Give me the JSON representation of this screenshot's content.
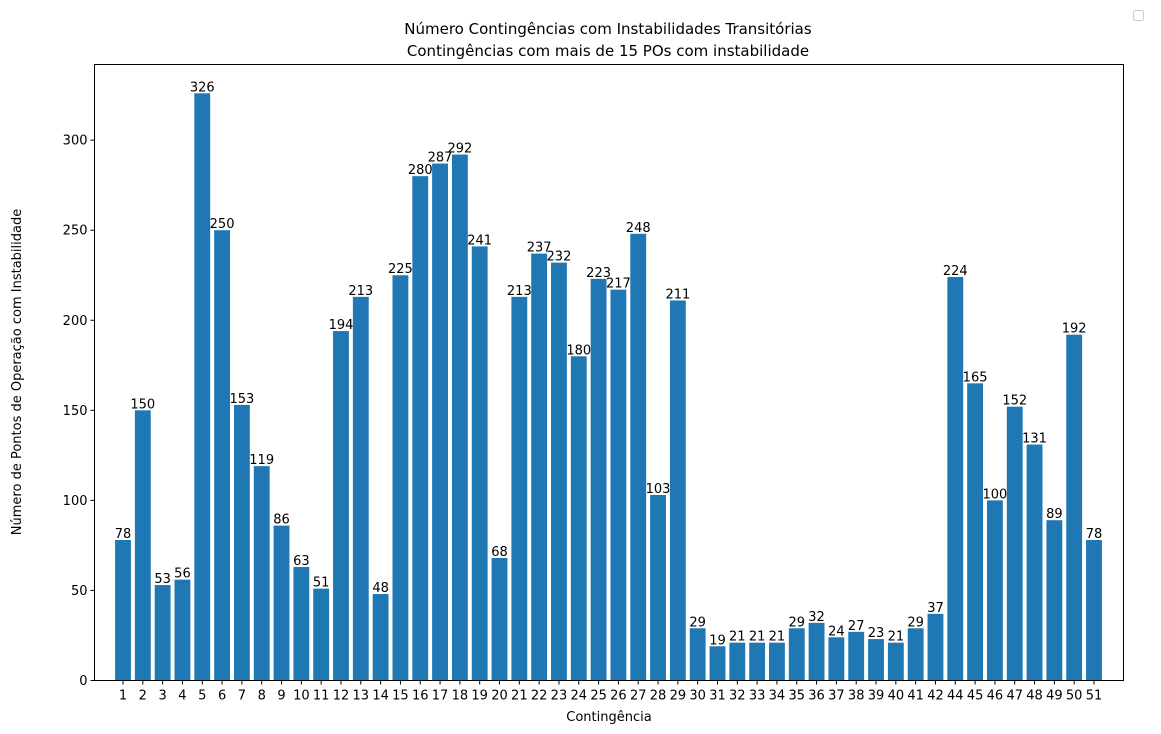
{
  "chart_data": {
    "type": "bar",
    "title": "Número Contingências com Instabilidades Transitórias",
    "subtitle": "Contingências com mais de 15 POs com instabilidade",
    "xlabel": "Contingência",
    "ylabel": "Número de Pontos de Operação com Instabilidade",
    "ylim": [
      0,
      342
    ],
    "yticks": [
      0,
      50,
      100,
      150,
      200,
      250,
      300
    ],
    "bar_color": "#1f77b4",
    "grid": false,
    "legend": "top-right (empty)",
    "categories": [
      "1",
      "2",
      "3",
      "4",
      "5",
      "6",
      "7",
      "8",
      "9",
      "10",
      "11",
      "12",
      "13",
      "14",
      "15",
      "16",
      "17",
      "18",
      "19",
      "20",
      "21",
      "22",
      "23",
      "24",
      "25",
      "26",
      "27",
      "28",
      "29",
      "30",
      "31",
      "32",
      "33",
      "34",
      "35",
      "36",
      "37",
      "38",
      "39",
      "40",
      "41",
      "42",
      "44",
      "45",
      "46",
      "47",
      "48",
      "49",
      "50",
      "51"
    ],
    "values": [
      78,
      150,
      53,
      56,
      326,
      250,
      153,
      119,
      86,
      63,
      51,
      194,
      213,
      48,
      225,
      280,
      287,
      292,
      241,
      68,
      213,
      237,
      232,
      180,
      223,
      217,
      248,
      103,
      211,
      29,
      19,
      21,
      21,
      21,
      29,
      32,
      24,
      27,
      23,
      21,
      29,
      37,
      224,
      165,
      100,
      152,
      131,
      89,
      192,
      78
    ]
  }
}
